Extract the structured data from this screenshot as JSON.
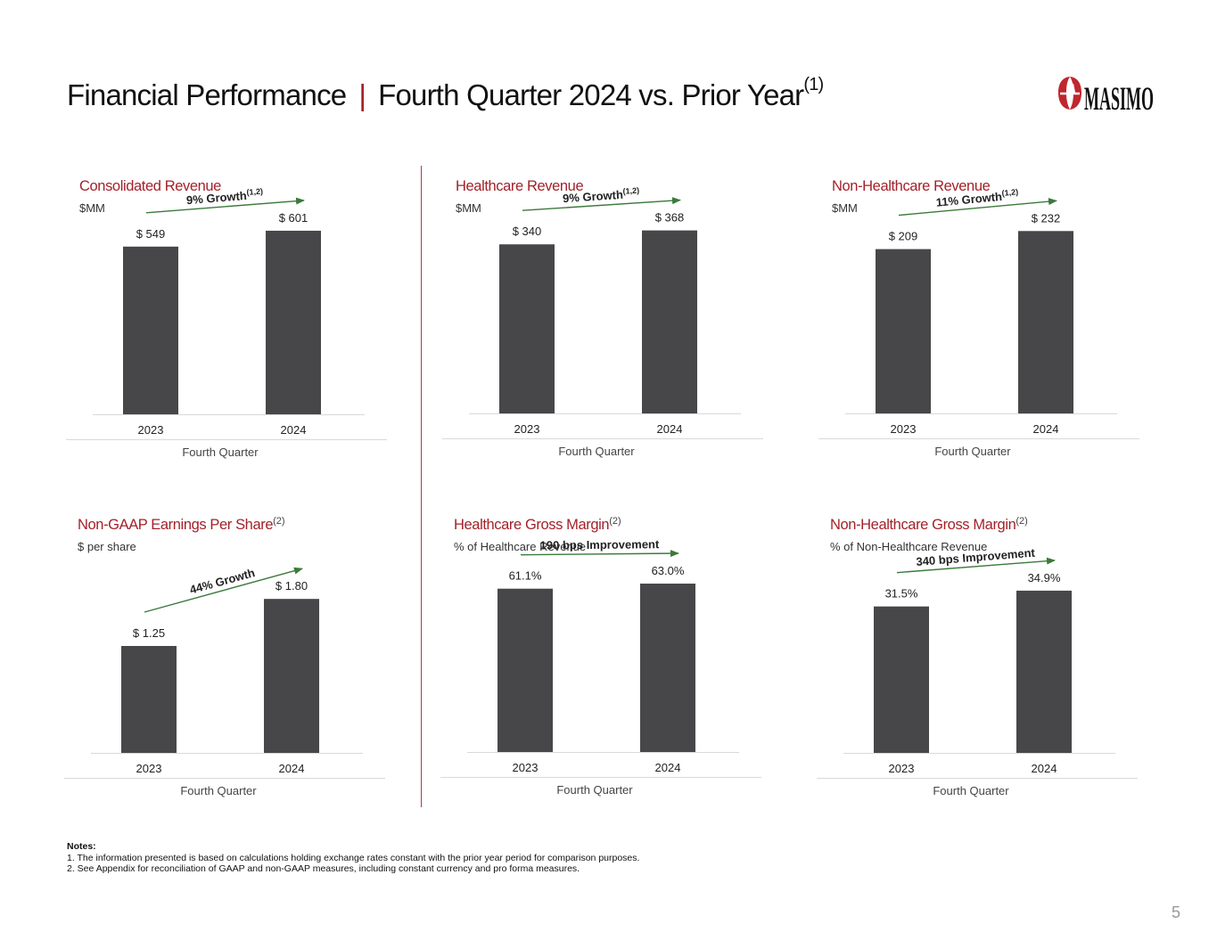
{
  "header": {
    "title_left": "Financial Performance",
    "separator": "|",
    "title_right": "Fourth Quarter 2024 vs. Prior Year",
    "title_sup": "(1)",
    "logo_text": "MASIMO"
  },
  "colors": {
    "accent": "#a3212a",
    "bar": "#474749",
    "arrow": "#3b7a3b",
    "axis": "#d9d9d9"
  },
  "panels": [
    {
      "title": "Consolidated Revenue",
      "title_sup": "",
      "subtitle": "$MM",
      "growth": "9% Growth",
      "growth_sup": "(1,2)"
    },
    {
      "title": "Healthcare Revenue",
      "title_sup": "",
      "subtitle": "$MM",
      "growth": "9% Growth",
      "growth_sup": "(1,2)"
    },
    {
      "title": "Non-Healthcare Revenue",
      "title_sup": "",
      "subtitle": "$MM",
      "growth": "11% Growth",
      "growth_sup": "(1,2)"
    },
    {
      "title": "Non-GAAP Earnings Per Share",
      "title_sup": "(2)",
      "subtitle": "$ per share",
      "growth": "44% Growth",
      "growth_sup": ""
    },
    {
      "title": "Healthcare Gross Margin",
      "title_sup": "(2)",
      "subtitle": "% of Healthcare Revenue",
      "growth": "190 bps Improvement",
      "growth_sup": ""
    },
    {
      "title": "Non-Healthcare Gross Margin",
      "title_sup": "(2)",
      "subtitle": "% of Non-Healthcare Revenue",
      "growth": "340 bps Improvement",
      "growth_sup": ""
    }
  ],
  "chart_data": [
    {
      "type": "bar",
      "title": "Consolidated Revenue",
      "subtitle": "$MM",
      "xlabel": "Fourth Quarter",
      "categories": [
        "2023",
        "2024"
      ],
      "values": [
        549,
        601
      ],
      "labels": [
        "$ 549",
        "$ 601"
      ],
      "ylim": [
        0,
        700
      ],
      "grid": false
    },
    {
      "type": "bar",
      "title": "Healthcare Revenue",
      "subtitle": "$MM",
      "xlabel": "Fourth Quarter",
      "categories": [
        "2023",
        "2024"
      ],
      "values": [
        340,
        368
      ],
      "labels": [
        "$ 340",
        "$ 368"
      ],
      "ylim": [
        0,
        430
      ],
      "grid": false
    },
    {
      "type": "bar",
      "title": "Non-Healthcare Revenue",
      "subtitle": "$MM",
      "xlabel": "Fourth Quarter",
      "categories": [
        "2023",
        "2024"
      ],
      "values": [
        209,
        232
      ],
      "labels": [
        "$ 209",
        "$ 232"
      ],
      "ylim": [
        0,
        272
      ],
      "grid": false
    },
    {
      "type": "bar",
      "title": "Non-GAAP Earnings Per Share",
      "subtitle": "$ per share",
      "xlabel": "Fourth Quarter",
      "categories": [
        "2023",
        "2024"
      ],
      "values": [
        1.25,
        1.8
      ],
      "labels": [
        "$ 1.25",
        "$ 1.80"
      ],
      "ylim": [
        0,
        2.5
      ],
      "grid": false
    },
    {
      "type": "bar",
      "title": "Healthcare Gross Margin",
      "subtitle": "% of Healthcare Revenue",
      "xlabel": "Fourth Quarter",
      "categories": [
        "2023",
        "2024"
      ],
      "values": [
        61.1,
        63.0
      ],
      "labels": [
        "61.1%",
        "63.0%"
      ],
      "ylim": [
        0,
        80
      ],
      "grid": false
    },
    {
      "type": "bar",
      "title": "Non-Healthcare Gross Margin",
      "subtitle": "% of Non-Healthcare Revenue",
      "xlabel": "Fourth Quarter",
      "categories": [
        "2023",
        "2024"
      ],
      "values": [
        31.5,
        34.9
      ],
      "labels": [
        "31.5%",
        "34.9%"
      ],
      "ylim": [
        0,
        46
      ],
      "grid": false
    }
  ],
  "notes": {
    "heading": "Notes:",
    "items": [
      "1.  The information presented is based on calculations holding exchange rates constant with the prior year period for comparison purposes.",
      "2.  See Appendix for reconciliation of GAAP and non-GAAP measures, including constant currency and pro forma measures."
    ]
  },
  "page_number": "5"
}
